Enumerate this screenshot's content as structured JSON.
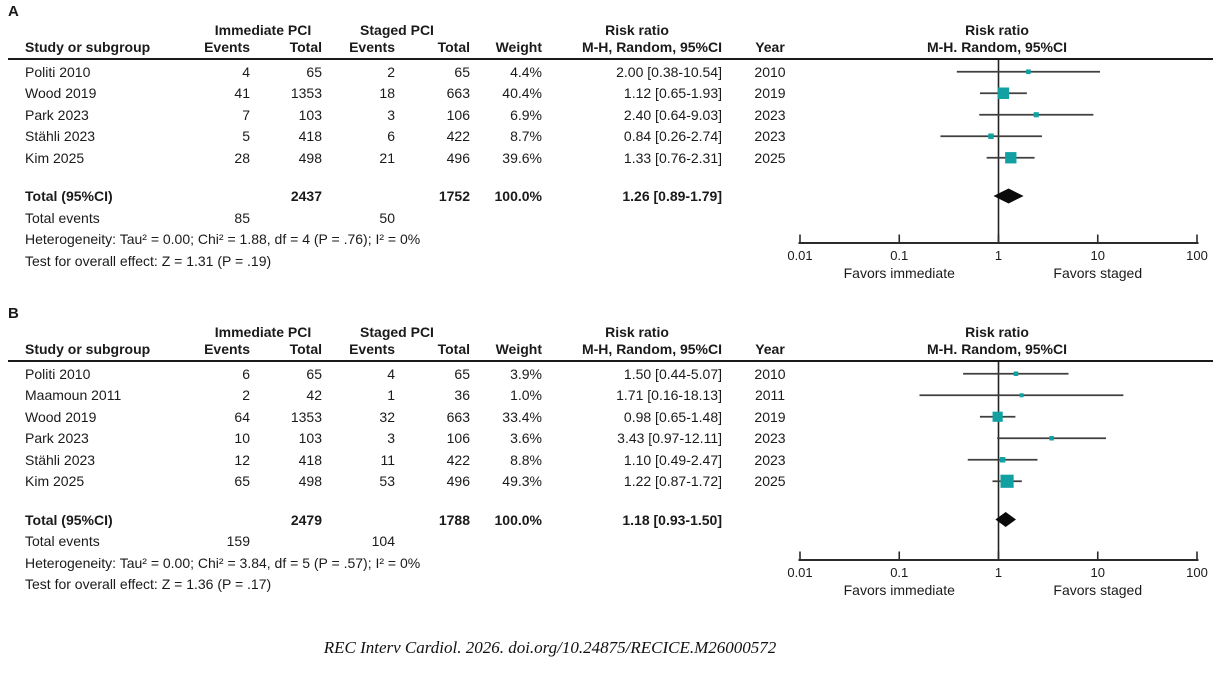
{
  "figure": {
    "footer_citation": "REC Interv Cardiol. 2026. doi.org/10.24875/RECICE.M26000572",
    "accent_color": "#12A1A2",
    "ci_line_color": "#3F3F3F",
    "axis_color": "#2B2B2B",
    "diamond_color": "#0B0B0B"
  },
  "chart_data": [
    {
      "type": "forest",
      "panel_label": "A",
      "plot_title": "Risk ratio",
      "plot_subtitle": "M-H. Random, 95%CI",
      "table_headers": {
        "study": "Study or subgroup",
        "group_immediate": "Immediate PCI",
        "group_staged": "Staged PCI",
        "events": "Events",
        "total": "Total",
        "weight": "Weight",
        "risk_ratio_title": "Risk ratio",
        "risk_ratio_sub": "M-H, Random, 95%CI",
        "year": "Year"
      },
      "studies": [
        {
          "name": "Politi 2010",
          "events_immediate": 4,
          "total_immediate": 65,
          "events_staged": 2,
          "total_staged": 65,
          "weight": "4.4%",
          "weight_pct": 4.4,
          "rr": 2.0,
          "ci_low": 0.38,
          "ci_high": 10.54,
          "rr_label": "2.00 [0.38-10.54]",
          "year": "2010"
        },
        {
          "name": "Wood 2019",
          "events_immediate": 41,
          "total_immediate": 1353,
          "events_staged": 18,
          "total_staged": 663,
          "weight": "40.4%",
          "weight_pct": 40.4,
          "rr": 1.12,
          "ci_low": 0.65,
          "ci_high": 1.93,
          "rr_label": "1.12 [0.65-1.93]",
          "year": "2019"
        },
        {
          "name": "Park 2023",
          "events_immediate": 7,
          "total_immediate": 103,
          "events_staged": 3,
          "total_staged": 106,
          "weight": "6.9%",
          "weight_pct": 6.9,
          "rr": 2.4,
          "ci_low": 0.64,
          "ci_high": 9.03,
          "rr_label": "2.40 [0.64-9.03]",
          "year": "2023"
        },
        {
          "name": "Stähli 2023",
          "events_immediate": 5,
          "total_immediate": 418,
          "events_staged": 6,
          "total_staged": 422,
          "weight": "8.7%",
          "weight_pct": 8.7,
          "rr": 0.84,
          "ci_low": 0.26,
          "ci_high": 2.74,
          "rr_label": "0.84 [0.26-2.74]",
          "year": "2023"
        },
        {
          "name": "Kim 2025",
          "events_immediate": 28,
          "total_immediate": 498,
          "events_staged": 21,
          "total_staged": 496,
          "weight": "39.6%",
          "weight_pct": 39.6,
          "rr": 1.33,
          "ci_low": 0.76,
          "ci_high": 2.31,
          "rr_label": "1.33 [0.76-2.31]",
          "year": "2025"
        }
      ],
      "total_row": {
        "label": "Total (95%CI)",
        "total_immediate": 2437,
        "total_staged": 1752,
        "weight": "100.0%",
        "rr": 1.26,
        "ci_low": 0.89,
        "ci_high": 1.79,
        "rr_label": "1.26 [0.89-1.79]"
      },
      "total_events_row": {
        "label": "Total events",
        "events_immediate": 85,
        "events_staged": 50
      },
      "heterogeneity": "Heterogeneity: Tau² = 0.00; Chi² = 1.88, df = 4 (P = .76); I² = 0%",
      "overall_effect": "Test for overall effect: Z = 1.31 (P = .19)",
      "x_axis": {
        "scale": "log",
        "range": [
          0.01,
          100
        ],
        "ticks": [
          0.01,
          0.1,
          1,
          10,
          100
        ],
        "tick_labels": [
          "0.01",
          "0.1",
          "1",
          "10",
          "100"
        ],
        "left_label": "Favors immediate",
        "right_label": "Favors staged"
      }
    },
    {
      "type": "forest",
      "panel_label": "B",
      "plot_title": "Risk ratio",
      "plot_subtitle": "M-H. Random, 95%CI",
      "table_headers": {
        "study": "Study or subgroup",
        "group_immediate": "Immediate PCI",
        "group_staged": "Staged PCI",
        "events": "Events",
        "total": "Total",
        "weight": "Weight",
        "risk_ratio_title": "Risk ratio",
        "risk_ratio_sub": "M-H, Random, 95%CI",
        "year": "Year"
      },
      "studies": [
        {
          "name": "Politi 2010",
          "events_immediate": 6,
          "total_immediate": 65,
          "events_staged": 4,
          "total_staged": 65,
          "weight": "3.9%",
          "weight_pct": 3.9,
          "rr": 1.5,
          "ci_low": 0.44,
          "ci_high": 5.07,
          "rr_label": "1.50 [0.44-5.07]",
          "year": "2010"
        },
        {
          "name": "Maamoun 2011",
          "events_immediate": 2,
          "total_immediate": 42,
          "events_staged": 1,
          "total_staged": 36,
          "weight": "1.0%",
          "weight_pct": 1.0,
          "rr": 1.71,
          "ci_low": 0.16,
          "ci_high": 18.13,
          "rr_label": "1.71 [0.16-18.13]",
          "year": "2011"
        },
        {
          "name": "Wood 2019",
          "events_immediate": 64,
          "total_immediate": 1353,
          "events_staged": 32,
          "total_staged": 663,
          "weight": "33.4%",
          "weight_pct": 33.4,
          "rr": 0.98,
          "ci_low": 0.65,
          "ci_high": 1.48,
          "rr_label": "0.98 [0.65-1.48]",
          "year": "2019"
        },
        {
          "name": "Park 2023",
          "events_immediate": 10,
          "total_immediate": 103,
          "events_staged": 3,
          "total_staged": 106,
          "weight": "3.6%",
          "weight_pct": 3.6,
          "rr": 3.43,
          "ci_low": 0.97,
          "ci_high": 12.11,
          "rr_label": "3.43 [0.97-12.11]",
          "year": "2023"
        },
        {
          "name": "Stähli 2023",
          "events_immediate": 12,
          "total_immediate": 418,
          "events_staged": 11,
          "total_staged": 422,
          "weight": "8.8%",
          "weight_pct": 8.8,
          "rr": 1.1,
          "ci_low": 0.49,
          "ci_high": 2.47,
          "rr_label": "1.10 [0.49-2.47]",
          "year": "2023"
        },
        {
          "name": "Kim 2025",
          "events_immediate": 65,
          "total_immediate": 498,
          "events_staged": 53,
          "total_staged": 496,
          "weight": "49.3%",
          "weight_pct": 49.3,
          "rr": 1.22,
          "ci_low": 0.87,
          "ci_high": 1.72,
          "rr_label": "1.22 [0.87-1.72]",
          "year": "2025"
        }
      ],
      "total_row": {
        "label": "Total (95%CI)",
        "total_immediate": 2479,
        "total_staged": 1788,
        "weight": "100.0%",
        "rr": 1.18,
        "ci_low": 0.93,
        "ci_high": 1.5,
        "rr_label": "1.18 [0.93-1.50]"
      },
      "total_events_row": {
        "label": "Total events",
        "events_immediate": 159,
        "events_staged": 104
      },
      "heterogeneity": "Heterogeneity: Tau² = 0.00; Chi² = 3.84, df = 5 (P = .57); I² = 0%",
      "overall_effect": "Test for overall effect: Z = 1.36 (P = .17)",
      "x_axis": {
        "scale": "log",
        "range": [
          0.01,
          100
        ],
        "ticks": [
          0.01,
          0.1,
          1,
          10,
          100
        ],
        "tick_labels": [
          "0.01",
          "0.1",
          "1",
          "10",
          "100"
        ],
        "left_label": "Favors immediate",
        "right_label": "Favors staged"
      }
    }
  ]
}
